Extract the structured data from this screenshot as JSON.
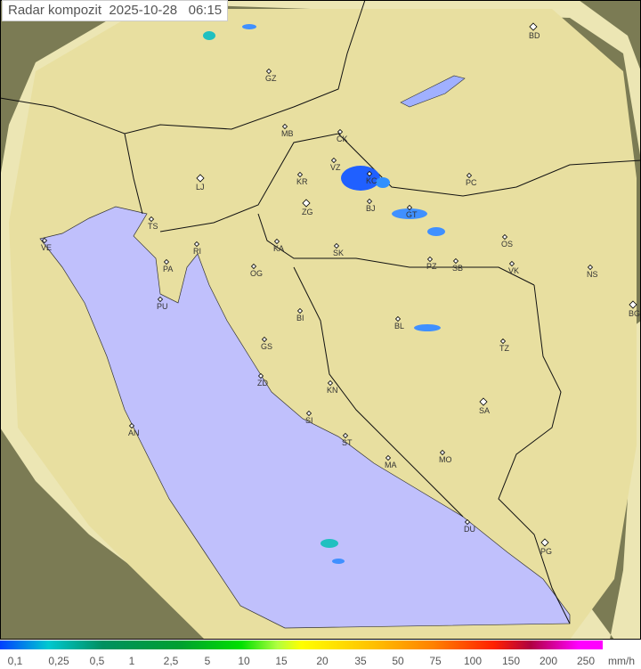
{
  "header": {
    "title": "Radar kompozit  2025-10-28   06:15"
  },
  "colors": {
    "sea": "#c0c0fc",
    "land": "#e8e0a8",
    "outside": "#7a7a52",
    "coverage_tint": "#f0ecc8",
    "border": "#000000",
    "radar_rain": "#2060ff"
  },
  "cities": [
    "GZ",
    "BD",
    "MB",
    "CK",
    "VZ",
    "KC",
    "KR",
    "LJ",
    "PC",
    "ZG",
    "BJ",
    "GT",
    "TS",
    "VE",
    "RI",
    "KA",
    "SK",
    "OS",
    "PZ",
    "SB",
    "VK",
    "NS",
    "PA",
    "OG",
    "PU",
    "BG",
    "BI",
    "BL",
    "TZ",
    "GS",
    "ZD",
    "KN",
    "SA",
    "SI",
    "AN",
    "ST",
    "MA",
    "MO",
    "DU",
    "PG"
  ],
  "legend": {
    "values": [
      "0,1",
      "0,25",
      "0,5",
      "1",
      "2,5",
      "5",
      "10",
      "15",
      "20",
      "35",
      "50",
      "75",
      "100",
      "150",
      "200",
      "250"
    ],
    "unit": "mm/h"
  }
}
